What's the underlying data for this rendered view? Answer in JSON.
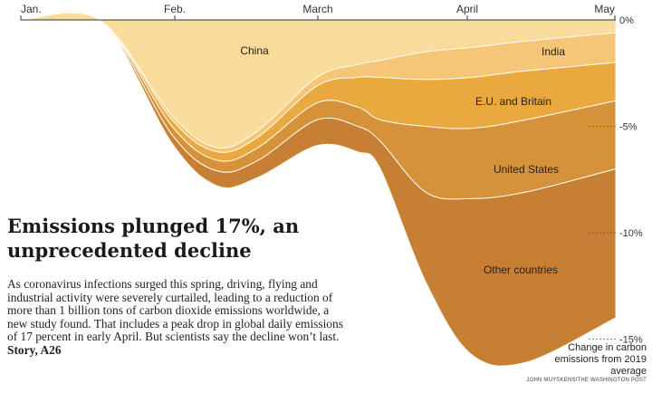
{
  "chart_data": {
    "type": "area",
    "stacked": true,
    "direction": "downward",
    "x_ticks": [
      "Jan.",
      "Feb.",
      "March",
      "April",
      "May"
    ],
    "x": [
      "Jan. 1",
      "Jan. 15",
      "Feb. 1",
      "Feb. 10",
      "Feb. 20",
      "March 1",
      "March 10",
      "March 20",
      "April 1",
      "April 7",
      "April 15",
      "May 1"
    ],
    "y_ticks": [
      "0%",
      "-5%",
      "-10%",
      "-15%"
    ],
    "ylim": [
      -16,
      0
    ],
    "ylabel": "Change in carbon emissions from 2019 average",
    "series": [
      {
        "name": "China",
        "color": "#f9dc9b",
        "values": [
          0,
          0,
          -4.5,
          -6.0,
          -5.2,
          -2.7,
          -2.1,
          -1.9,
          -1.5,
          -1.3,
          -1.0,
          -0.6
        ]
      },
      {
        "name": "India",
        "color": "#f5c677",
        "values": [
          0,
          0,
          -0.2,
          -0.2,
          -0.3,
          -0.4,
          -0.6,
          -0.8,
          -1.3,
          -1.4,
          -1.4,
          -1.4
        ]
      },
      {
        "name": "E.U. and Britain",
        "color": "#eaa93f",
        "values": [
          0,
          0,
          -0.3,
          -0.4,
          -0.5,
          -0.8,
          -1.4,
          -2.0,
          -2.2,
          -2.4,
          -2.3,
          -1.8
        ]
      },
      {
        "name": "United States",
        "color": "#d5923a",
        "values": [
          0,
          0,
          -0.4,
          -0.5,
          -0.6,
          -0.8,
          -0.9,
          -1.0,
          -3.1,
          -3.3,
          -3.4,
          -3.2
        ]
      },
      {
        "name": "Other countries",
        "color": "#c77f33",
        "values": [
          0,
          0,
          -0.4,
          -0.7,
          -0.8,
          -1.2,
          -1.2,
          -1.3,
          -4.2,
          -7.3,
          -8.0,
          -7.0
        ]
      }
    ],
    "credit": "JOHN MUYSKENS/THE WASHINGTON POST"
  },
  "article": {
    "headline": "Emissions plunged 17%, an unprecedented decline",
    "body": "As coronavirus infections surged this spring, driving, flying and industrial activity were severely curtailed, leading to a reduction of more than 1 billion tons of carbon dioxide emissions worldwide, a new study found. That includes a peak drop in global daily emissions of 17 percent in early April. But scientists say the decline won’t last.",
    "story_ref": "Story, A26"
  }
}
